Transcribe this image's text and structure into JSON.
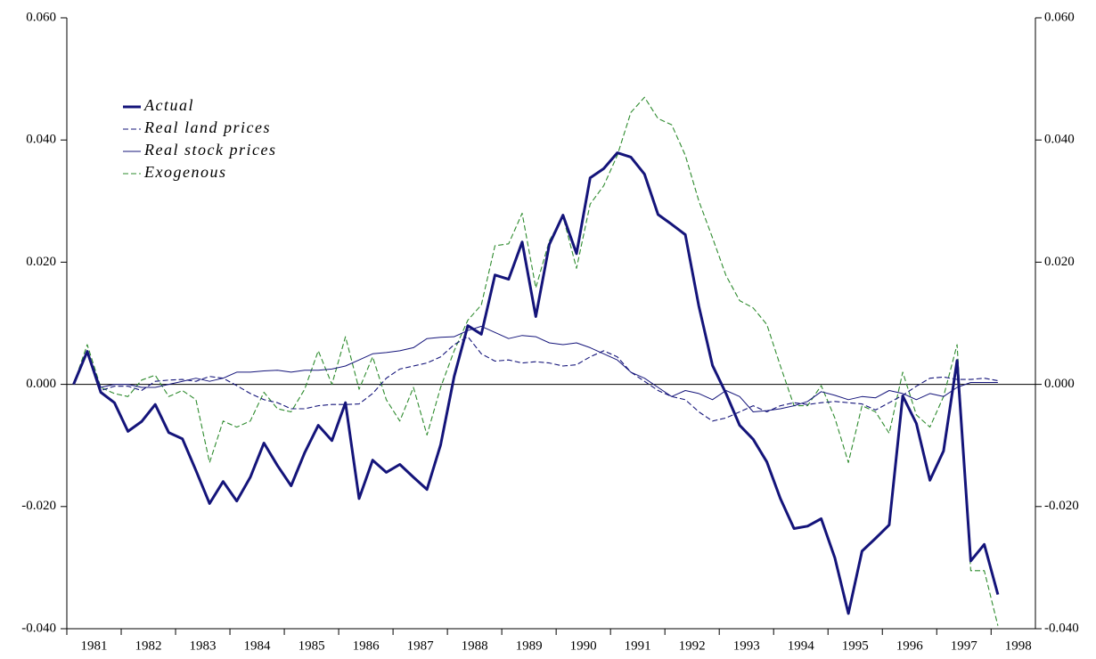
{
  "chart_data": {
    "type": "line",
    "x": [
      1981,
      1981.25,
      1981.5,
      1981.75,
      1982,
      1982.25,
      1982.5,
      1982.75,
      1983,
      1983.25,
      1983.5,
      1983.75,
      1984,
      1984.25,
      1984.5,
      1984.75,
      1985,
      1985.25,
      1985.5,
      1985.75,
      1986,
      1986.25,
      1986.5,
      1986.75,
      1987,
      1987.25,
      1987.5,
      1987.75,
      1988,
      1988.25,
      1988.5,
      1988.75,
      1989,
      1989.25,
      1989.5,
      1989.75,
      1990,
      1990.25,
      1990.5,
      1990.75,
      1991,
      1991.25,
      1991.5,
      1991.75,
      1992,
      1992.25,
      1992.5,
      1992.75,
      1993,
      1993.25,
      1993.5,
      1993.75,
      1994,
      1994.25,
      1994.5,
      1994.75,
      1995,
      1995.25,
      1995.5,
      1995.75,
      1996,
      1996.25,
      1996.5,
      1996.75,
      1997,
      1997.25,
      1997.5,
      1997.75,
      1998
    ],
    "series": [
      {
        "name": "Actual",
        "color": "#14147a",
        "style": "thick",
        "values": [
          0,
          0.0054,
          -0.0013,
          -0.003,
          -0.0077,
          -0.0061,
          -0.0033,
          -0.0079,
          -0.0089,
          -0.0141,
          -0.0195,
          -0.0159,
          -0.0191,
          -0.0152,
          -0.0096,
          -0.0133,
          -0.0166,
          -0.0112,
          -0.0067,
          -0.0092,
          -0.003,
          -0.0187,
          -0.0124,
          -0.0144,
          -0.0131,
          -0.0152,
          -0.0172,
          -0.0099,
          0.0013,
          0.0096,
          0.0082,
          0.0179,
          0.0172,
          0.0233,
          0.0111,
          0.0229,
          0.0277,
          0.0214,
          0.0338,
          0.0353,
          0.0379,
          0.0372,
          0.0344,
          0.0278,
          0.0262,
          0.0245,
          0.0128,
          0.0031,
          -0.0015,
          -0.0067,
          -0.009,
          -0.0127,
          -0.0187,
          -0.0236,
          -0.0232,
          -0.022,
          -0.0284,
          -0.0375,
          -0.0273,
          -0.0252,
          -0.023,
          -0.0019,
          -0.0064,
          -0.0157,
          -0.0109,
          0.0039,
          -0.0289,
          -0.0262,
          -0.0344
        ]
      },
      {
        "name": "Real land prices",
        "color": "#14147a",
        "style": "dashed",
        "values": [
          0,
          0.0055,
          -0.001,
          -0.0003,
          -0.0003,
          -0.001,
          0.0005,
          0.0007,
          0.0008,
          0.0005,
          0.0013,
          0.001,
          -0.0002,
          -0.0015,
          -0.0025,
          -0.003,
          -0.004,
          -0.004,
          -0.0035,
          -0.0033,
          -0.0033,
          -0.0032,
          -0.0015,
          0.001,
          0.0025,
          0.003,
          0.0035,
          0.0045,
          0.0065,
          0.0078,
          0.005,
          0.0038,
          0.004,
          0.0035,
          0.0037,
          0.0035,
          0.003,
          0.0032,
          0.0045,
          0.0055,
          0.0045,
          0.002,
          0.0005,
          -0.001,
          -0.002,
          -0.0025,
          -0.0045,
          -0.006,
          -0.0055,
          -0.0045,
          -0.0035,
          -0.0045,
          -0.0035,
          -0.003,
          -0.0033,
          -0.003,
          -0.0028,
          -0.003,
          -0.0032,
          -0.0042,
          -0.003,
          -0.0018,
          -0.0003,
          0.001,
          0.0012,
          0.0008,
          0.0008,
          0.001,
          0.0006
        ]
      },
      {
        "name": "Real stock prices",
        "color": "#14147a",
        "style": "solid",
        "values": [
          0,
          0.0055,
          -0.0005,
          0,
          0,
          -0.0005,
          -0.0005,
          0,
          0.0005,
          0.001,
          0.0005,
          0.001,
          0.002,
          0.002,
          0.0022,
          0.0023,
          0.002,
          0.0023,
          0.0023,
          0.0025,
          0.003,
          0.004,
          0.005,
          0.0052,
          0.0055,
          0.006,
          0.0075,
          0.0077,
          0.0078,
          0.0088,
          0.0095,
          0.0085,
          0.0075,
          0.008,
          0.0078,
          0.0068,
          0.0065,
          0.0068,
          0.006,
          0.005,
          0.004,
          0.002,
          0.001,
          -0.0005,
          -0.002,
          -0.001,
          -0.0015,
          -0.0025,
          -0.001,
          -0.002,
          -0.0045,
          -0.0043,
          -0.004,
          -0.0035,
          -0.0028,
          -0.0012,
          -0.0018,
          -0.0025,
          -0.002,
          -0.0022,
          -0.001,
          -0.0015,
          -0.0025,
          -0.0015,
          -0.002,
          -0.0005,
          0.0003,
          0.0003,
          0.0003
        ]
      },
      {
        "name": "Exogenous",
        "color": "#2e8b2e",
        "style": "dashed",
        "values": [
          0,
          0.0065,
          -0.0005,
          -0.0015,
          -0.002,
          0.0007,
          0.0015,
          -0.002,
          -0.001,
          -0.0025,
          -0.0128,
          -0.006,
          -0.007,
          -0.006,
          -0.0013,
          -0.004,
          -0.0045,
          -0.0008,
          0.0055,
          0,
          0.0078,
          -0.0008,
          0.0045,
          -0.0025,
          -0.006,
          -0.0005,
          -0.0083,
          -0.0005,
          0.0055,
          0.0105,
          0.013,
          0.0227,
          0.023,
          0.028,
          0.0158,
          0.0235,
          0.0275,
          0.019,
          0.0295,
          0.0325,
          0.0375,
          0.0445,
          0.047,
          0.0435,
          0.0425,
          0.0375,
          0.03,
          0.024,
          0.0178,
          0.0137,
          0.0125,
          0.0098,
          0.003,
          -0.0035,
          -0.0035,
          -0.0002,
          -0.0055,
          -0.0128,
          -0.0035,
          -0.0045,
          -0.008,
          0.002,
          -0.005,
          -0.007,
          -0.002,
          0.0065,
          -0.0305,
          -0.0305,
          -0.0395
        ]
      }
    ],
    "xlim": [
      1980.875,
      1998.69
    ],
    "xticks": [
      1981,
      1982,
      1983,
      1984,
      1985,
      1986,
      1987,
      1988,
      1989,
      1990,
      1991,
      1992,
      1993,
      1994,
      1995,
      1996,
      1997,
      1998
    ],
    "ylim": [
      -0.04,
      0.06
    ],
    "yticks": [
      {
        "value": -0.04,
        "label": "-0.040"
      },
      {
        "value": -0.02,
        "label": "-0.020"
      },
      {
        "value": 0,
        "label": "0.000"
      },
      {
        "value": 0.02,
        "label": "0.020"
      },
      {
        "value": 0.04,
        "label": "0.040"
      },
      {
        "value": 0.06,
        "label": "0.060"
      }
    ],
    "legend": "upper left"
  }
}
